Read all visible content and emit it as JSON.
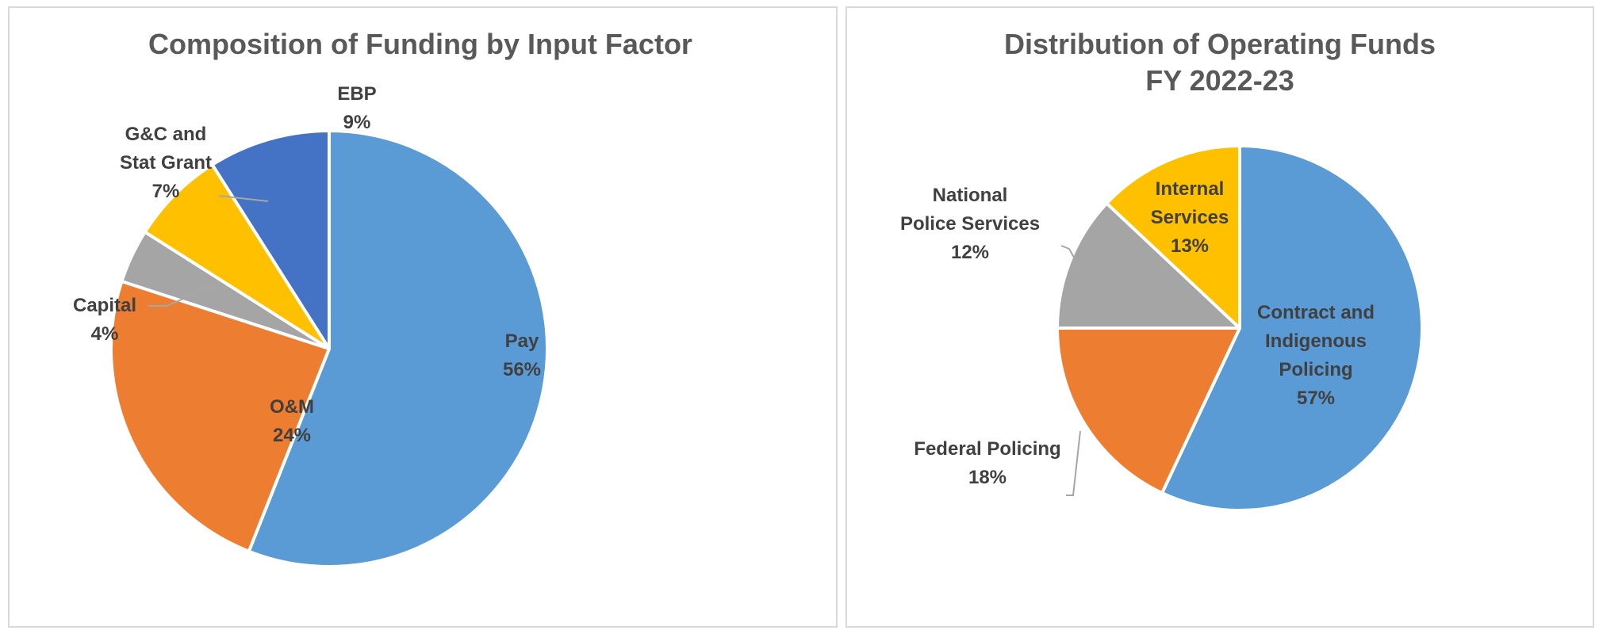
{
  "chart_data": [
    {
      "type": "pie",
      "title": "Composition of Funding by Input Factor",
      "labels": [
        "Pay",
        "O&M",
        "Capital",
        "G&C and Stat Grant",
        "EBP"
      ],
      "values": [
        56,
        24,
        4,
        7,
        9
      ],
      "value_labels": [
        "56%",
        "24%",
        "4%",
        "7%",
        "9%"
      ],
      "colors": [
        "#5b9bd5",
        "#ed7d31",
        "#a5a5a5",
        "#ffc000",
        "#4472c4"
      ]
    },
    {
      "type": "pie",
      "title": "Distribution of Operating Funds",
      "subtitle": "FY 2022-23",
      "labels": [
        "Contract and Indigenous Policing",
        "Federal Policing",
        "National Police Services",
        "Internal Services"
      ],
      "values": [
        57,
        18,
        12,
        13
      ],
      "value_labels": [
        "57%",
        "18%",
        "12%",
        "13%"
      ],
      "colors": [
        "#5b9bd5",
        "#ed7d31",
        "#a5a5a5",
        "#ffc000"
      ]
    }
  ]
}
